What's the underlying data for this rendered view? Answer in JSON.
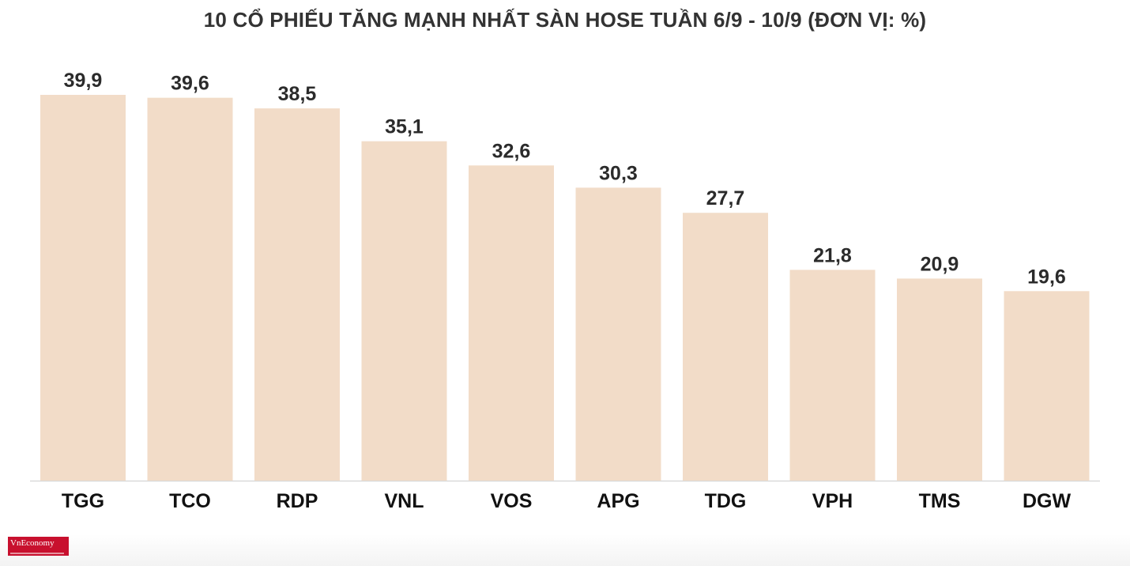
{
  "title": "10 CỔ PHIẾU TĂNG MẠNH NHẤT SÀN HOSE TUẦN 6/9 - 10/9 (ĐƠN VỊ: %)",
  "logo_text": "VnEconomy",
  "colors": {
    "bar": "#f2dcc8",
    "axis": "#d9d9d9",
    "logo": "#c8102e"
  },
  "chart_data": {
    "type": "bar",
    "title": "10 CỔ PHIẾU TĂNG MẠNH NHẤT SÀN HOSE TUẦN 6/9 - 10/9 (ĐƠN VỊ: %)",
    "categories": [
      "TGG",
      "TCO",
      "RDP",
      "VNL",
      "VOS",
      "APG",
      "TDG",
      "VPH",
      "TMS",
      "DGW"
    ],
    "values": [
      39.9,
      39.6,
      38.5,
      35.1,
      32.6,
      30.3,
      27.7,
      21.8,
      20.9,
      19.6
    ],
    "value_labels": [
      "39,9",
      "39,6",
      "38,5",
      "35,1",
      "32,6",
      "30,3",
      "27,7",
      "21,8",
      "20,9",
      "19,6"
    ],
    "xlabel": "",
    "ylabel": "",
    "ylim": [
      0,
      39.9
    ],
    "grid": false,
    "legend": "none"
  }
}
